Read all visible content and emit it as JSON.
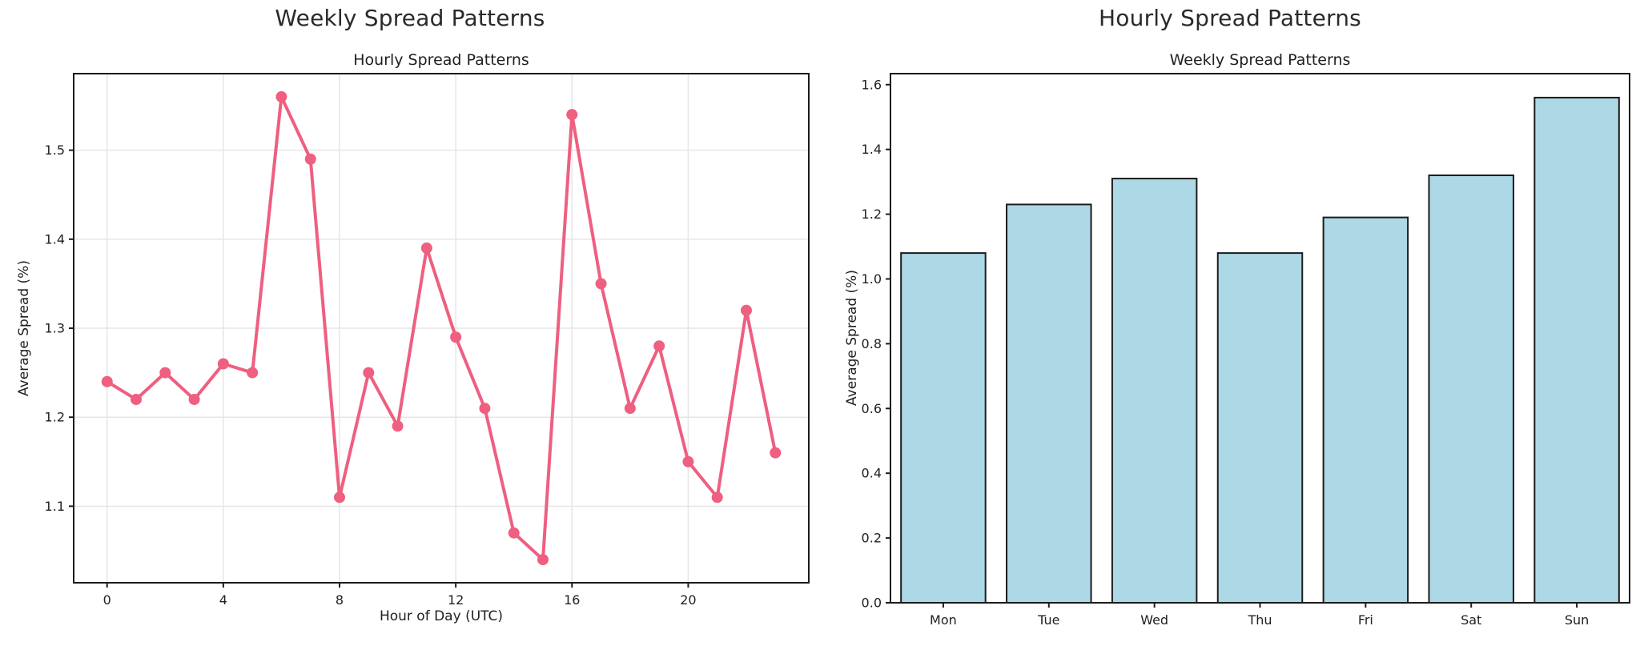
{
  "page": {
    "background": "#ffffff"
  },
  "chart_data": [
    {
      "type": "line",
      "title": "Weekly Spread Patterns",
      "axes_title": "Hourly Spread Patterns",
      "xlabel": "Hour of Day (UTC)",
      "ylabel": "Average Spread (%)",
      "x": [
        0,
        1,
        2,
        3,
        4,
        5,
        6,
        7,
        8,
        9,
        10,
        11,
        12,
        13,
        14,
        15,
        16,
        17,
        18,
        19,
        20,
        21,
        22,
        23
      ],
      "values": [
        1.24,
        1.22,
        1.25,
        1.22,
        1.26,
        1.25,
        1.56,
        1.49,
        1.11,
        1.25,
        1.19,
        1.39,
        1.29,
        1.21,
        1.07,
        1.04,
        1.54,
        1.35,
        1.21,
        1.28,
        1.15,
        1.11,
        1.32,
        1.16
      ],
      "xtick_values": [
        0,
        4,
        8,
        12,
        16,
        20
      ],
      "xtick_labels": [
        "0",
        "4",
        "8",
        "12",
        "16",
        "20"
      ],
      "ytick_values": [
        1.1,
        1.2,
        1.3,
        1.4,
        1.5
      ],
      "ytick_labels": [
        "1.1",
        "1.2",
        "1.3",
        "1.4",
        "1.5"
      ],
      "xlim": [
        -1.15,
        24.15
      ],
      "ylim": [
        1.014,
        1.586
      ],
      "grid": true,
      "legend_position": "none",
      "colors": {
        "line": "#ee5f80",
        "marker": "#ee5f80",
        "grid": "#e6e6e6",
        "spine": "#1c1c1c",
        "tick_text": "#222222"
      }
    },
    {
      "type": "bar",
      "title": "Hourly Spread Patterns",
      "axes_title": "Weekly Spread Patterns",
      "xlabel": "",
      "ylabel": "Average Spread (%)",
      "categories": [
        "Mon",
        "Tue",
        "Wed",
        "Thu",
        "Fri",
        "Sat",
        "Sun"
      ],
      "values": [
        1.08,
        1.23,
        1.31,
        1.08,
        1.19,
        1.32,
        1.56
      ],
      "ytick_values": [
        0.0,
        0.2,
        0.4,
        0.6,
        0.8,
        1.0,
        1.2,
        1.4,
        1.6
      ],
      "ytick_labels": [
        "0.0",
        "0.2",
        "0.4",
        "0.6",
        "0.8",
        "1.0",
        "1.2",
        "1.4",
        "1.6"
      ],
      "ylim": [
        0,
        1.634
      ],
      "bar_width_fraction": 0.8,
      "grid": false,
      "legend_position": "none",
      "colors": {
        "bar_fill": "#add8e6",
        "bar_edge": "#1c1c1c",
        "spine": "#1c1c1c",
        "tick_text": "#222222"
      }
    }
  ]
}
